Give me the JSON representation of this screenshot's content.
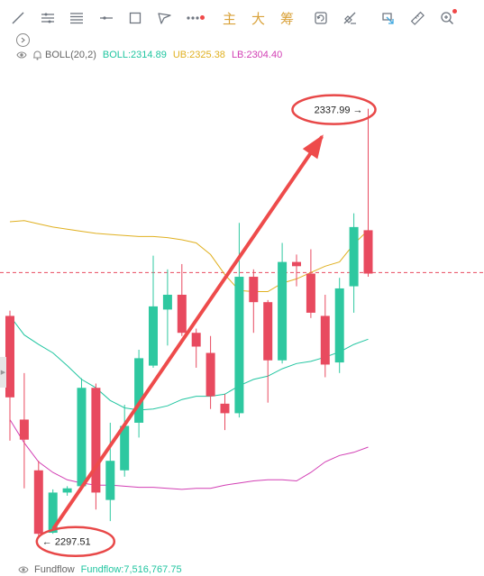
{
  "toolbar": {
    "tools": [
      {
        "icon": "line-tool-icon"
      },
      {
        "icon": "parallel-lines-icon"
      },
      {
        "icon": "horizontal-lines-icon"
      },
      {
        "icon": "horizontal-ray-icon"
      },
      {
        "icon": "rectangle-icon"
      },
      {
        "icon": "pen-icon"
      },
      {
        "icon": "more-dots-icon",
        "badge": true
      }
    ],
    "cn_buttons": [
      "主",
      "大",
      "筹"
    ],
    "right_tools": [
      {
        "icon": "refresh-icon"
      },
      {
        "icon": "eraser-icon"
      },
      {
        "icon": "annotation-icon"
      },
      {
        "icon": "ruler-icon"
      },
      {
        "icon": "zoom-icon",
        "badge": true
      }
    ]
  },
  "indicator": {
    "name": "BOLL(20,2)",
    "boll": "BOLL:2314.89",
    "ub": "UB:2325.38",
    "lb": "LB:2304.40",
    "colors": {
      "name": "#666666",
      "boll": "#20c5a0",
      "ub": "#e0b020",
      "lb": "#d23fb4"
    }
  },
  "annotations": {
    "high_label": "2337.99",
    "low_label": "2297.51",
    "circle_color": "#e84848",
    "arrow_color": "#ee4b4b"
  },
  "fundflow": {
    "name": "Fundflow",
    "value": "Fundflow:7,516,767.75",
    "colors": {
      "name": "#666666",
      "value": "#20c5a0"
    }
  },
  "chart_data": {
    "type": "candlestick",
    "price_range": [
      2295.6,
      2342.3
    ],
    "current_price_line": 2322.5,
    "up_color": "#2ec8a0",
    "down_color": "#e84a5f",
    "candles": [
      {
        "o": 2318.4,
        "c": 2310.7,
        "h": 2318.9,
        "l": 2306.6
      },
      {
        "o": 2308.6,
        "c": 2306.7,
        "h": 2313.0,
        "l": 2302.1
      },
      {
        "o": 2303.8,
        "c": 2297.8,
        "h": 2304.7,
        "l": 2297.5
      },
      {
        "o": 2297.9,
        "c": 2301.7,
        "h": 2302.0,
        "l": 2297.8
      },
      {
        "o": 2301.7,
        "c": 2302.1,
        "h": 2302.3,
        "l": 2301.4
      },
      {
        "o": 2302.3,
        "c": 2311.6,
        "h": 2312.5,
        "l": 2301.9
      },
      {
        "o": 2311.6,
        "c": 2301.7,
        "h": 2312.0,
        "l": 2300.1
      },
      {
        "o": 2301.0,
        "c": 2304.7,
        "h": 2308.3,
        "l": 2299.0
      },
      {
        "o": 2303.8,
        "c": 2308.0,
        "h": 2310.0,
        "l": 2303.2
      },
      {
        "o": 2308.3,
        "c": 2314.4,
        "h": 2315.2,
        "l": 2306.9
      },
      {
        "o": 2313.7,
        "c": 2319.3,
        "h": 2324.1,
        "l": 2313.5
      },
      {
        "o": 2319.0,
        "c": 2320.4,
        "h": 2322.8,
        "l": 2315.6
      },
      {
        "o": 2320.4,
        "c": 2316.8,
        "h": 2323.3,
        "l": 2316.5
      },
      {
        "o": 2316.8,
        "c": 2315.5,
        "h": 2317.2,
        "l": 2313.5
      },
      {
        "o": 2314.9,
        "c": 2310.8,
        "h": 2316.5,
        "l": 2309.6
      },
      {
        "o": 2310.1,
        "c": 2309.2,
        "h": 2311.0,
        "l": 2307.6
      },
      {
        "o": 2309.2,
        "c": 2322.1,
        "h": 2327.2,
        "l": 2308.8
      },
      {
        "o": 2322.1,
        "c": 2319.7,
        "h": 2322.8,
        "l": 2316.8
      },
      {
        "o": 2319.7,
        "c": 2314.2,
        "h": 2319.9,
        "l": 2310.2
      },
      {
        "o": 2314.2,
        "c": 2323.5,
        "h": 2325.3,
        "l": 2313.9
      },
      {
        "o": 2323.5,
        "c": 2323.1,
        "h": 2324.2,
        "l": 2321.2
      },
      {
        "o": 2322.4,
        "c": 2318.7,
        "h": 2324.7,
        "l": 2318.2
      },
      {
        "o": 2318.4,
        "c": 2313.8,
        "h": 2320.4,
        "l": 2312.6
      },
      {
        "o": 2314.0,
        "c": 2321.0,
        "h": 2322.0,
        "l": 2313.0
      },
      {
        "o": 2321.2,
        "c": 2326.8,
        "h": 2328.1,
        "l": 2318.7
      },
      {
        "o": 2326.5,
        "c": 2322.4,
        "h": 2337.99,
        "l": 2322.1
      }
    ],
    "boll_mid": [
      2318.4,
      2316.6,
      2315.7,
      2314.9,
      2313.7,
      2312.4,
      2311.6,
      2310.4,
      2309.7,
      2309.5,
      2309.6,
      2309.9,
      2310.5,
      2310.8,
      2310.8,
      2311.0,
      2311.8,
      2312.4,
      2312.7,
      2313.4,
      2313.9,
      2314.1,
      2314.5,
      2315.0,
      2315.7,
      2316.2
    ],
    "boll_ub": [
      2327.3,
      2327.4,
      2327.1,
      2326.8,
      2326.6,
      2326.4,
      2326.2,
      2326.1,
      2326.0,
      2325.9,
      2325.9,
      2325.8,
      2325.6,
      2325.3,
      2324.2,
      2322.3,
      2320.8,
      2320.7,
      2320.7,
      2321.5,
      2321.9,
      2322.5,
      2323.1,
      2323.5,
      2325.2,
      2326.5
    ],
    "boll_lb": [
      2308.6,
      2306.4,
      2304.6,
      2303.6,
      2302.9,
      2302.6,
      2302.4,
      2302.4,
      2302.3,
      2302.2,
      2302.2,
      2302.1,
      2302.0,
      2302.1,
      2302.1,
      2302.4,
      2302.6,
      2302.8,
      2302.9,
      2302.9,
      2302.8,
      2303.6,
      2304.6,
      2305.2,
      2305.5,
      2306.0
    ]
  }
}
